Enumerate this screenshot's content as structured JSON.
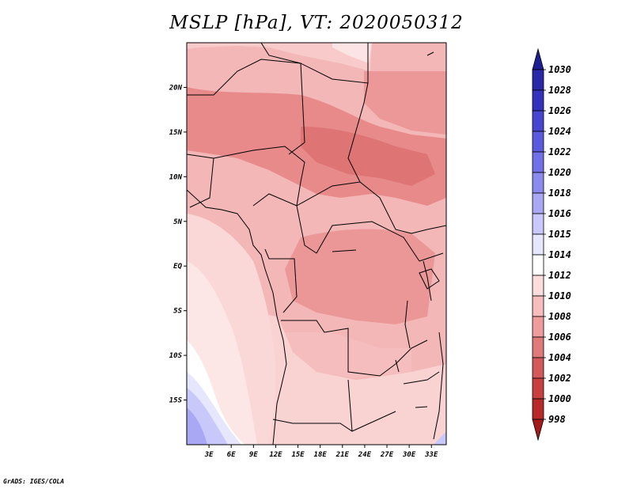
{
  "title": "MSLP [hPa], VT: 2020050312",
  "credit": "GrADS: IGES/COLA",
  "map": {
    "x_ticks": [
      "3E",
      "6E",
      "9E",
      "12E",
      "15E",
      "18E",
      "21E",
      "24E",
      "27E",
      "30E",
      "33E"
    ],
    "y_ticks": [
      "20N",
      "15N",
      "10N",
      "5N",
      "EQ",
      "5S",
      "10S",
      "15S"
    ],
    "lon_range": [
      0,
      35
    ],
    "lat_range": [
      -20,
      25
    ],
    "variable": "Mean sea level pressure",
    "units": "hPa",
    "valid_time": "2020050312"
  },
  "colorbar": {
    "labels": [
      "1030",
      "1028",
      "1026",
      "1024",
      "1022",
      "1020",
      "1018",
      "1016",
      "1015",
      "1014",
      "1012",
      "1010",
      "1008",
      "1006",
      "1004",
      "1002",
      "1000",
      "998"
    ],
    "colors": [
      "#1f1f95",
      "#2828a8",
      "#3232bd",
      "#4646d0",
      "#5a5ade",
      "#7070e8",
      "#8a8aef",
      "#a8a8f5",
      "#c8c8fa",
      "#e6e6fd",
      "#ffffff",
      "#fcdcdc",
      "#f7bcbc",
      "#ef9c9c",
      "#e07a7a",
      "#d45a5a",
      "#c84040",
      "#b82a2a",
      "#a51a1a"
    ],
    "max_arrow_color": "#1f1f95",
    "min_arrow_color": "#a51a1a"
  },
  "style": {
    "land_dominant": "#efa2a2",
    "ocean_high": "#fde4e4"
  }
}
